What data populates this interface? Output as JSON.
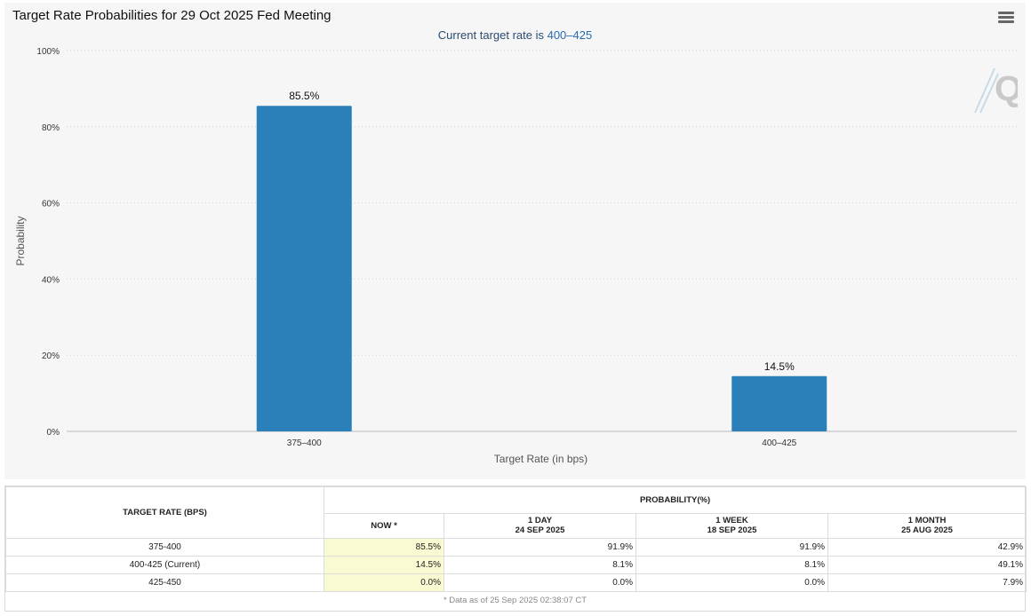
{
  "chart": {
    "title": "Target Rate Probabilities for 29 Oct 2025 Fed Meeting",
    "subtitle_prefix": "Current target rate is ",
    "subtitle_value": "400–425",
    "menu_icon": "hamburger-menu-icon",
    "logo_icon": "q-logo-icon"
  },
  "chart_data": {
    "type": "bar",
    "title": "Target Rate Probabilities for 29 Oct 2025 Fed Meeting",
    "subtitle": "Current target rate is 400–425",
    "categories": [
      "375–400",
      "400–425"
    ],
    "values": [
      85.5,
      14.5
    ],
    "data_labels": [
      "85.5%",
      "14.5%"
    ],
    "xlabel": "Target Rate (in bps)",
    "ylabel": "Probability",
    "ylim": [
      0,
      100
    ],
    "yticks": [
      0,
      20,
      40,
      60,
      80,
      100
    ],
    "ytick_labels": [
      "0%",
      "20%",
      "40%",
      "60%",
      "80%",
      "100%"
    ],
    "grid": true,
    "bar_color": "#2b80b9"
  },
  "table": {
    "header_rate": "TARGET RATE (BPS)",
    "header_prob": "PROBABILITY(%)",
    "columns": [
      {
        "line1": "NOW *",
        "line2": ""
      },
      {
        "line1": "1 DAY",
        "line2": "24 SEP 2025"
      },
      {
        "line1": "1 WEEK",
        "line2": "18 SEP 2025"
      },
      {
        "line1": "1 MONTH",
        "line2": "25 AUG 2025"
      }
    ],
    "rows": [
      {
        "rate": "375-400",
        "values": [
          "85.5%",
          "91.9%",
          "91.9%",
          "42.9%"
        ]
      },
      {
        "rate": "400-425 (Current)",
        "values": [
          "14.5%",
          "8.1%",
          "8.1%",
          "49.1%"
        ]
      },
      {
        "rate": "425-450",
        "values": [
          "0.0%",
          "0.0%",
          "0.0%",
          "7.9%"
        ]
      }
    ],
    "footnote": "* Data as of 25 Sep 2025 02:38:07 CT",
    "now_highlight_color": "#fafad2"
  }
}
